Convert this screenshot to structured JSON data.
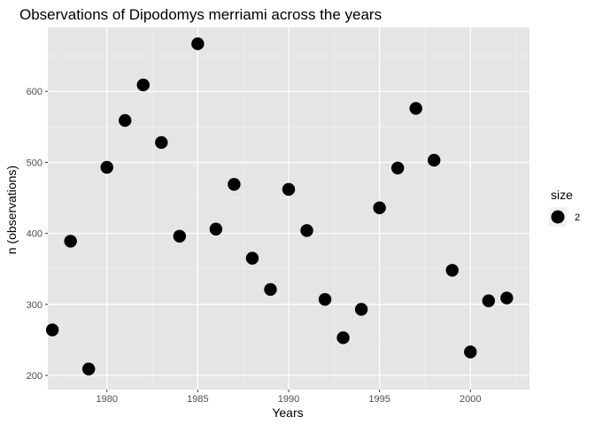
{
  "chart_data": {
    "type": "scatter",
    "title": "Observations of Dipodomys merriami across the years",
    "xlabel": "Years",
    "ylabel": "n (observations)",
    "xlim": [
      1976.75,
      2003.25
    ],
    "ylim": [
      180,
      690
    ],
    "x_ticks": [
      1980,
      1985,
      1990,
      1995,
      2000
    ],
    "x_tick_labels": [
      "1980",
      "1985",
      "1990",
      "1995",
      "2000"
    ],
    "y_ticks": [
      200,
      300,
      400,
      500,
      600
    ],
    "y_tick_labels": [
      "200",
      "300",
      "400",
      "500",
      "600"
    ],
    "grid": true,
    "background": "#e5e5e5",
    "point_color": "#000000",
    "legend": {
      "title": "size",
      "placement": "right",
      "entries": [
        {
          "label": "2"
        }
      ]
    },
    "points": [
      {
        "x": 1977,
        "y": 264
      },
      {
        "x": 1978,
        "y": 389
      },
      {
        "x": 1979,
        "y": 209
      },
      {
        "x": 1980,
        "y": 493
      },
      {
        "x": 1981,
        "y": 559
      },
      {
        "x": 1982,
        "y": 609
      },
      {
        "x": 1983,
        "y": 528
      },
      {
        "x": 1984,
        "y": 396
      },
      {
        "x": 1985,
        "y": 667
      },
      {
        "x": 1986,
        "y": 406
      },
      {
        "x": 1987,
        "y": 469
      },
      {
        "x": 1988,
        "y": 365
      },
      {
        "x": 1989,
        "y": 321
      },
      {
        "x": 1990,
        "y": 462
      },
      {
        "x": 1991,
        "y": 404
      },
      {
        "x": 1992,
        "y": 307
      },
      {
        "x": 1993,
        "y": 253
      },
      {
        "x": 1994,
        "y": 293
      },
      {
        "x": 1995,
        "y": 436
      },
      {
        "x": 1996,
        "y": 492
      },
      {
        "x": 1997,
        "y": 576
      },
      {
        "x": 1998,
        "y": 503
      },
      {
        "x": 1999,
        "y": 348
      },
      {
        "x": 2000,
        "y": 233
      },
      {
        "x": 2001,
        "y": 305
      },
      {
        "x": 2002,
        "y": 309
      }
    ]
  }
}
